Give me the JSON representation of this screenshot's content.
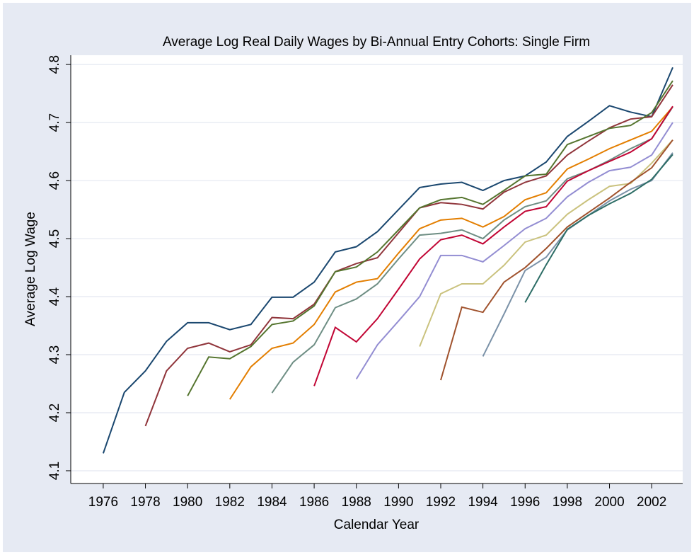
{
  "chart_data": {
    "type": "line",
    "title": "Average Log Real Daily Wages by Bi-Annual Entry Cohorts: Single Firm",
    "x_label": "Calendar Year",
    "y_label": "Average Log Wage",
    "x": [
      1976,
      1977,
      1978,
      1979,
      1980,
      1981,
      1982,
      1983,
      1984,
      1985,
      1986,
      1987,
      1988,
      1989,
      1990,
      1991,
      1992,
      1993,
      1994,
      1995,
      1996,
      1997,
      1998,
      1999,
      2000,
      2001,
      2002,
      2003
    ],
    "xlim": [
      1974.46,
      2003.47
    ],
    "xticks": [
      1976,
      1978,
      1980,
      1982,
      1984,
      1986,
      1988,
      1990,
      1992,
      1994,
      1996,
      1998,
      2000,
      2002
    ],
    "ylim": [
      4.078,
      4.816
    ],
    "yticks": [
      4.1,
      4.2,
      4.3,
      4.4,
      4.5,
      4.6,
      4.7,
      4.8
    ],
    "grid": true,
    "series": [
      {
        "color": "#1a476f",
        "values": [
          4.13,
          4.235,
          4.272,
          4.323,
          4.355,
          4.355,
          4.343,
          4.352,
          4.399,
          4.399,
          4.425,
          4.477,
          4.486,
          4.512,
          4.55,
          4.588,
          4.594,
          4.597,
          4.583,
          4.6,
          4.608,
          4.632,
          4.676,
          4.702,
          4.729,
          4.718,
          4.71,
          4.795
        ]
      },
      {
        "color": "#90353b",
        "values": [
          null,
          null,
          4.177,
          4.272,
          4.311,
          4.32,
          4.305,
          4.317,
          4.364,
          4.362,
          4.387,
          4.443,
          4.457,
          4.467,
          4.51,
          4.553,
          4.562,
          4.559,
          4.551,
          4.58,
          4.597,
          4.608,
          4.644,
          4.668,
          4.691,
          4.706,
          4.71,
          4.765
        ]
      },
      {
        "color": "#55752f",
        "values": [
          null,
          null,
          null,
          null,
          4.229,
          4.296,
          4.293,
          4.314,
          4.352,
          4.358,
          4.384,
          4.443,
          4.451,
          4.477,
          4.515,
          4.553,
          4.567,
          4.571,
          4.559,
          4.583,
          4.608,
          4.611,
          4.662,
          4.676,
          4.69,
          4.695,
          4.717,
          4.772
        ]
      },
      {
        "color": "#e37e00",
        "values": [
          null,
          null,
          null,
          null,
          null,
          null,
          4.223,
          4.279,
          4.311,
          4.32,
          4.352,
          4.408,
          4.425,
          4.431,
          4.475,
          4.517,
          4.532,
          4.535,
          4.52,
          4.538,
          4.567,
          4.579,
          4.62,
          4.637,
          4.655,
          4.67,
          4.685,
          4.727
        ]
      },
      {
        "color": "#6e8e84",
        "values": [
          null,
          null,
          null,
          null,
          null,
          null,
          null,
          null,
          4.234,
          4.287,
          4.317,
          4.381,
          4.396,
          4.422,
          4.465,
          4.506,
          4.509,
          4.515,
          4.5,
          4.532,
          4.555,
          4.565,
          4.603,
          4.617,
          4.635,
          4.655,
          4.672,
          4.727
        ]
      },
      {
        "color": "#c10534",
        "values": [
          null,
          null,
          null,
          null,
          null,
          null,
          null,
          null,
          null,
          null,
          4.246,
          4.347,
          4.322,
          4.362,
          4.413,
          4.465,
          4.498,
          4.506,
          4.491,
          4.52,
          4.547,
          4.555,
          4.599,
          4.617,
          4.633,
          4.649,
          4.672,
          4.728
        ]
      },
      {
        "color": "#938dd2",
        "values": [
          null,
          null,
          null,
          null,
          null,
          null,
          null,
          null,
          null,
          null,
          null,
          null,
          4.258,
          4.317,
          4.358,
          4.4,
          4.471,
          4.471,
          4.46,
          4.488,
          4.517,
          4.535,
          4.572,
          4.597,
          4.617,
          4.623,
          4.644,
          4.7
        ]
      },
      {
        "color": "#cac27e",
        "values": [
          null,
          null,
          null,
          null,
          null,
          null,
          null,
          null,
          null,
          null,
          null,
          null,
          null,
          null,
          null,
          4.314,
          4.405,
          4.422,
          4.422,
          4.454,
          4.494,
          4.506,
          4.542,
          4.567,
          4.59,
          4.595,
          4.63,
          4.67
        ]
      },
      {
        "color": "#a0522d",
        "values": [
          null,
          null,
          null,
          null,
          null,
          null,
          null,
          null,
          null,
          null,
          null,
          null,
          null,
          null,
          null,
          null,
          4.256,
          4.382,
          4.373,
          4.425,
          4.45,
          4.483,
          4.52,
          4.545,
          4.57,
          4.597,
          4.622,
          4.67
        ]
      },
      {
        "color": "#7b92a8",
        "values": [
          null,
          null,
          null,
          null,
          null,
          null,
          null,
          null,
          null,
          null,
          null,
          null,
          null,
          null,
          null,
          null,
          null,
          null,
          4.297,
          4.37,
          4.445,
          4.468,
          4.515,
          4.54,
          4.565,
          4.585,
          4.6,
          4.648
        ]
      },
      {
        "color": "#2d6d66",
        "values": [
          null,
          null,
          null,
          null,
          null,
          null,
          null,
          null,
          null,
          null,
          null,
          null,
          null,
          null,
          null,
          null,
          null,
          null,
          null,
          null,
          4.39,
          4.455,
          4.516,
          4.54,
          4.56,
          4.578,
          4.602,
          4.645
        ]
      }
    ]
  }
}
